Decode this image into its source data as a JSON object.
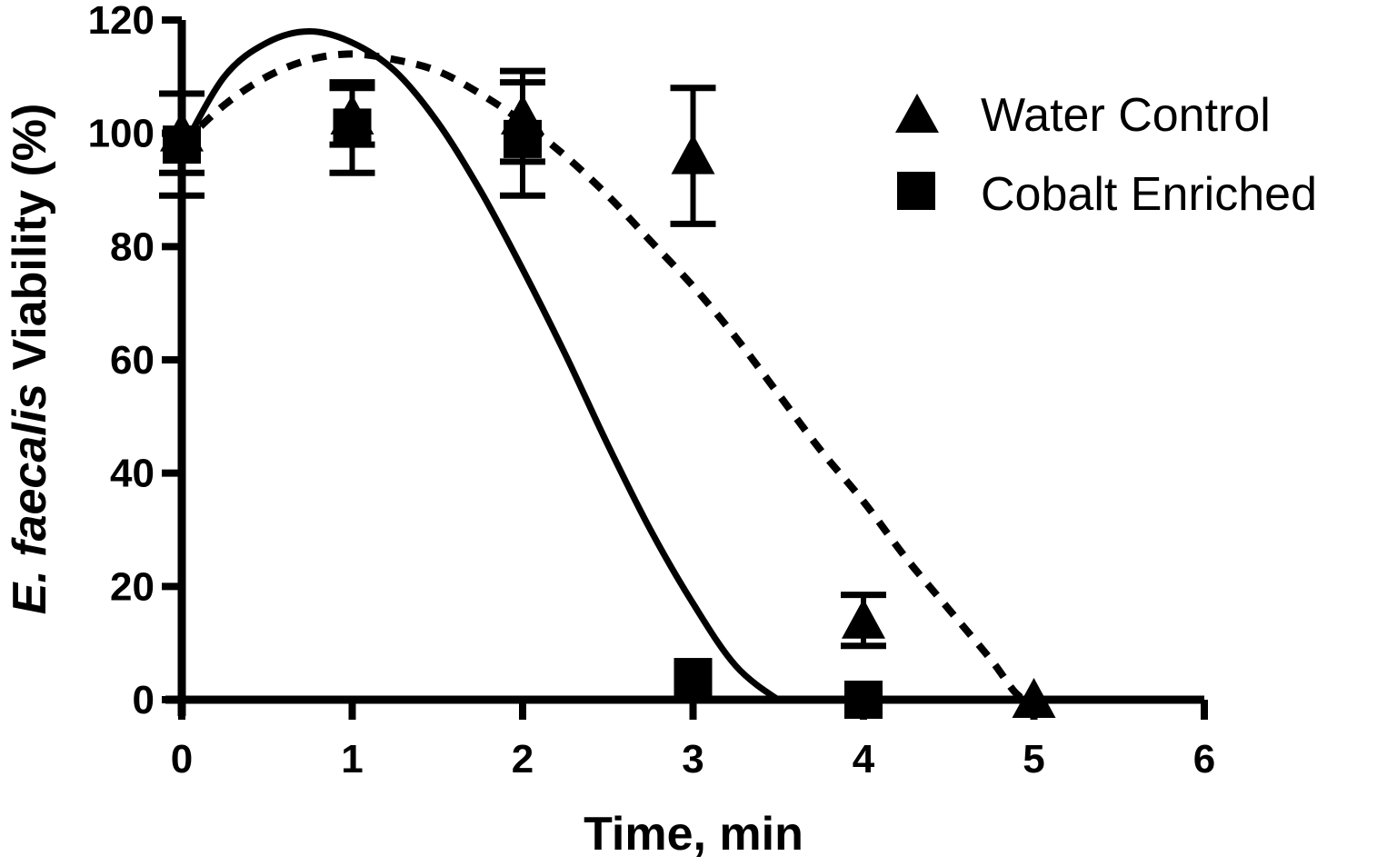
{
  "chart_data": {
    "type": "scatter",
    "title": "",
    "xlabel": "Time, min",
    "ylabel_italic": "E. faecalis",
    "ylabel_rest": " Viability (%)",
    "xlim": [
      0,
      6
    ],
    "ylim": [
      0,
      120
    ],
    "x_ticks": [
      0,
      1,
      2,
      3,
      4,
      5,
      6
    ],
    "y_ticks": [
      0,
      20,
      40,
      60,
      80,
      100,
      120
    ],
    "x_tick_labels": [
      "0",
      "1",
      "2",
      "3",
      "4",
      "5",
      "6"
    ],
    "y_tick_labels": [
      "0",
      "20",
      "40",
      "60",
      "80",
      "100",
      "120"
    ],
    "grid": false,
    "legend_position": "top-right",
    "series": [
      {
        "name": "Water Control",
        "marker": "triangle",
        "fit_line": "dashed",
        "x": [
          0,
          1,
          2,
          3,
          4,
          5
        ],
        "y": [
          100,
          103,
          103,
          96,
          14,
          0
        ],
        "error": [
          7,
          5,
          8,
          12,
          4.5,
          0
        ],
        "fit_x": [
          0,
          0.25,
          0.5,
          0.75,
          1,
          1.25,
          1.5,
          1.75,
          2,
          2.25,
          2.5,
          2.75,
          3,
          3.25,
          3.5,
          3.75,
          4,
          4.25,
          4.5,
          4.75,
          4.9,
          5.0,
          5.5,
          6
        ],
        "fit_y": [
          98,
          105,
          110,
          113,
          114,
          113,
          111,
          107,
          102,
          96,
          89,
          81,
          73,
          64,
          54,
          44,
          35,
          25,
          16,
          7,
          1,
          0,
          0,
          0
        ]
      },
      {
        "name": "Cobalt Enriched",
        "marker": "square",
        "fit_line": "solid",
        "x": [
          0,
          1,
          2,
          3,
          4
        ],
        "y": [
          98,
          101,
          99,
          4,
          0
        ],
        "error": [
          9,
          8,
          10,
          0,
          0
        ],
        "fit_x": [
          0,
          0.25,
          0.5,
          0.75,
          1,
          1.25,
          1.5,
          1.75,
          2,
          2.25,
          2.5,
          2.75,
          3,
          3.25,
          3.5,
          3.55,
          4,
          5,
          6
        ],
        "fit_y": [
          97,
          110,
          116,
          118,
          116,
          111,
          102,
          90,
          76,
          61,
          45,
          30,
          17,
          6,
          0,
          0,
          0,
          0,
          0
        ]
      }
    ]
  }
}
